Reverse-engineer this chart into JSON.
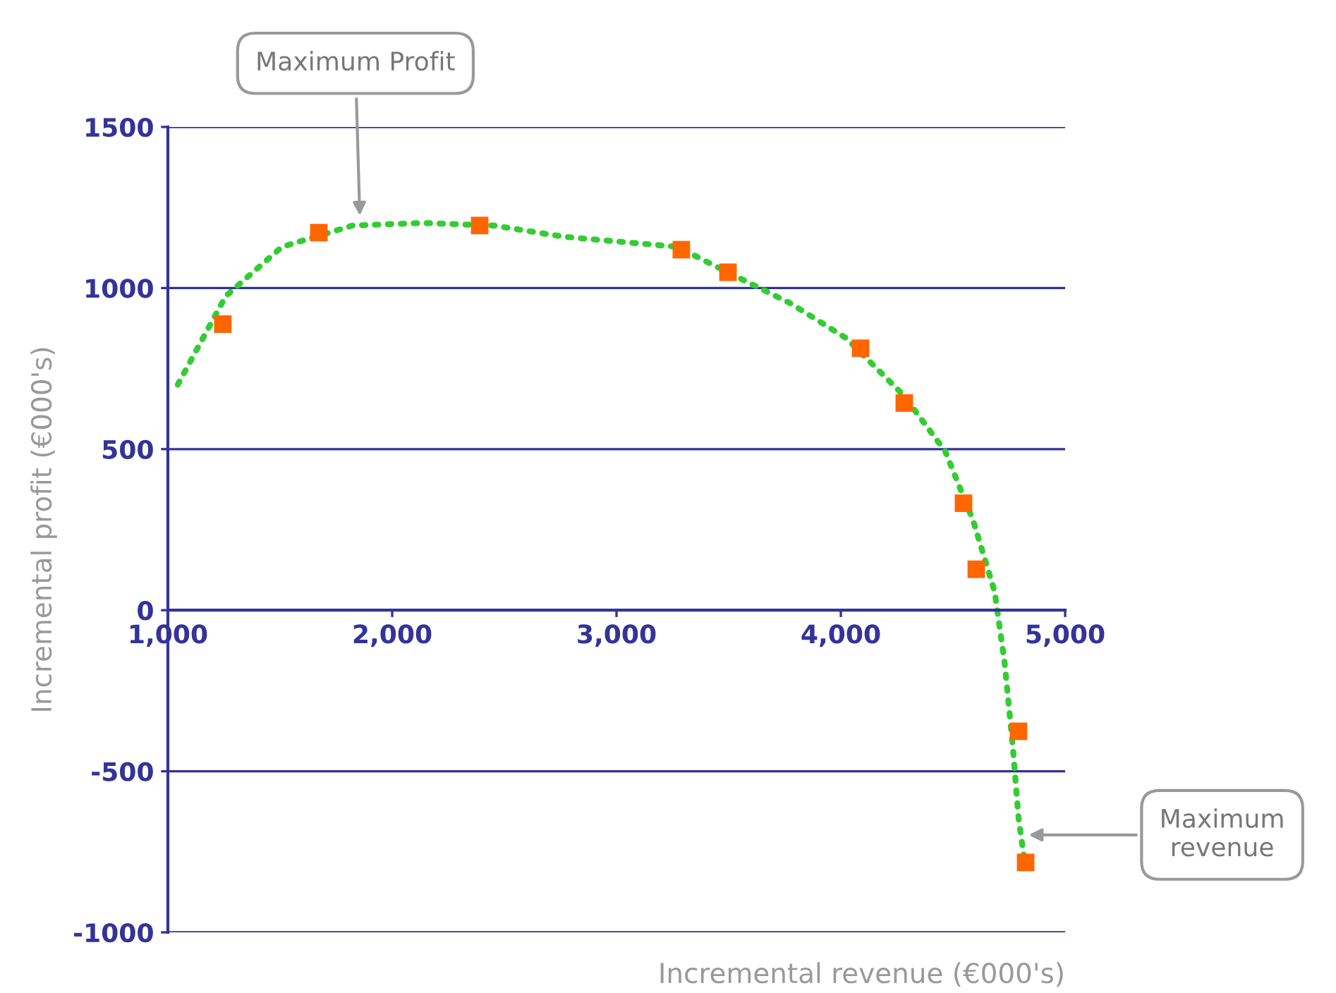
{
  "chart_data": {
    "type": "scatter",
    "xlabel": "Incremental revenue (€000's)",
    "ylabel": "Incremental profit (€000's)",
    "xlim": [
      1000,
      5000
    ],
    "ylim": [
      -1000,
      1500
    ],
    "xticks": [
      {
        "value": 1000,
        "label": "1,000"
      },
      {
        "value": 2000,
        "label": "2,000"
      },
      {
        "value": 3000,
        "label": "3,000"
      },
      {
        "value": 4000,
        "label": "4,000"
      },
      {
        "value": 5000,
        "label": "5,000"
      }
    ],
    "yticks": [
      -1000,
      -500,
      0,
      500,
      1000,
      1500
    ],
    "grid": "y",
    "legend": false,
    "series": [
      {
        "type": "line",
        "color": "#33cc33",
        "line_style": "dotted",
        "marker": "none",
        "x": [
          1044,
          1258,
          1509,
          1824,
          2138,
          2453,
          2767,
          3270,
          3522,
          3774,
          4025,
          4277,
          4465,
          4591,
          4686,
          4730,
          4767,
          4792,
          4818
        ],
        "values": [
          700,
          975,
          1128,
          1194,
          1202,
          1194,
          1159,
          1128,
          1040,
          953,
          844,
          669,
          494,
          276,
          57,
          -162,
          -425,
          -643,
          -774
        ]
      },
      {
        "color": "#ff6600",
        "marker": "square",
        "x": [
          1245,
          1673,
          2390,
          3289,
          3497,
          4088,
          4283,
          4547,
          4604,
          4792,
          4824
        ],
        "values": [
          888,
          1172,
          1194,
          1119,
          1049,
          813,
          643,
          332,
          127,
          -376,
          -783
        ]
      }
    ],
    "annotations": [
      "Maximum Profit",
      "Maximum\nrevenue"
    ]
  }
}
